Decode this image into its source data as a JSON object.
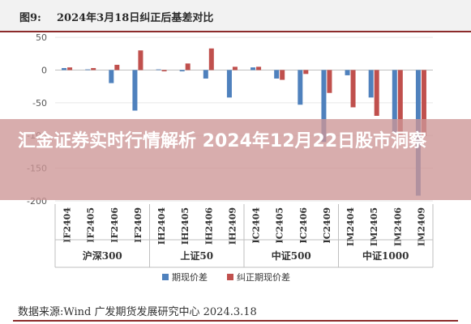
{
  "header": {
    "figure_label": "图9:",
    "figure_title": "2024年3月18日纠正后基差对比"
  },
  "footer": {
    "source": "数据来源:Wind 广发期货发展研究中心 2024.3.18"
  },
  "overlay": {
    "headline": "汇金证券实时行情解析 2024年12月22日股市洞察"
  },
  "colors": {
    "series1": "#4f81bd",
    "series2": "#c0504d",
    "grid": "#e6e6e6",
    "axis_text": "#555555"
  },
  "chart_data": {
    "type": "bar",
    "ylim": [
      -200,
      60
    ],
    "yticks": [
      50,
      0,
      -50,
      -100,
      -150,
      -200
    ],
    "grid": true,
    "legend_position": "bottom",
    "categories": [
      "IF2404",
      "IF2405",
      "IF2406",
      "IF2409",
      "IH2404",
      "IH2405",
      "IH2406",
      "IH2409",
      "IC2404",
      "IC2405",
      "IC2406",
      "IC2409",
      "IM2404",
      "IM2405",
      "IM2406",
      "IM2409"
    ],
    "groups": [
      {
        "name": "沪深300",
        "count": 4
      },
      {
        "name": "上证50",
        "count": 4
      },
      {
        "name": "中证500",
        "count": 4
      },
      {
        "name": "中证1000",
        "count": 4
      }
    ],
    "series": [
      {
        "name": "期现价差",
        "values": [
          3,
          1,
          -20,
          -62,
          1,
          -2,
          -13,
          -42,
          4,
          -13,
          -53,
          -110,
          -8,
          -42,
          -97,
          -192
        ]
      },
      {
        "name": "纠正期现价差",
        "values": [
          4,
          3,
          8,
          30,
          -2,
          10,
          33,
          5,
          5,
          -15,
          -6,
          -35,
          -57,
          -70,
          -100,
          -101
        ]
      }
    ]
  }
}
